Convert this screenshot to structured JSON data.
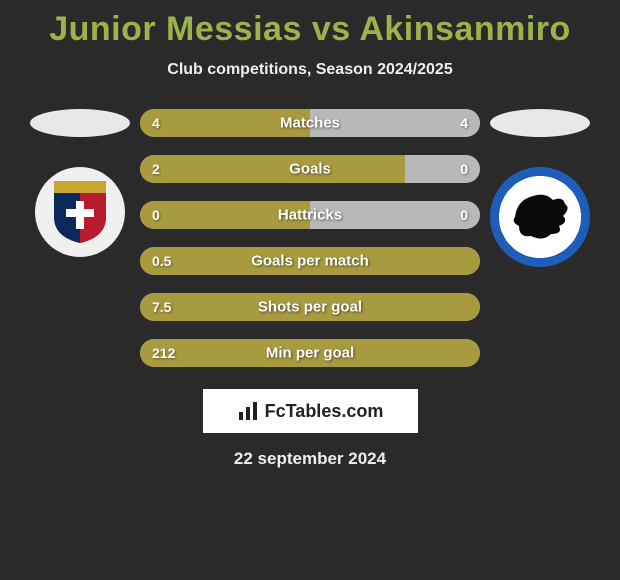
{
  "title_color": "#9bb34a",
  "player_left": "Junior Messias",
  "player_right": "Akinsanmiro",
  "vs_text": "vs",
  "subtitle": "Club competitions, Season 2024/2025",
  "left_fill_color": "#a89a3e",
  "right_fill_color": "#b8b8b8",
  "bar_bg_color": "#888888",
  "stats": [
    {
      "label": "Matches",
      "left_val": "4",
      "right_val": "4",
      "left_pct": 50,
      "right_pct": 50
    },
    {
      "label": "Goals",
      "left_val": "2",
      "right_val": "0",
      "left_pct": 78,
      "right_pct": 22
    },
    {
      "label": "Hattricks",
      "left_val": "0",
      "right_val": "0",
      "left_pct": 50,
      "right_pct": 50
    },
    {
      "label": "Goals per match",
      "left_val": "0.5",
      "right_val": "",
      "left_pct": 100,
      "right_pct": 0
    },
    {
      "label": "Shots per goal",
      "left_val": "7.5",
      "right_val": "",
      "left_pct": 100,
      "right_pct": 0
    },
    {
      "label": "Min per goal",
      "left_val": "212",
      "right_val": "",
      "left_pct": 100,
      "right_pct": 0
    }
  ],
  "branding_text": "FcTables.com",
  "date_text": "22 september 2024",
  "crest_left": {
    "top_color": "#c9a832",
    "mid_color": "#0a2a5c",
    "bottom_color": "#b81c2c"
  },
  "crest_right": {
    "ring_color": "#1e5db8",
    "silhouette_color": "#0a0a0a"
  }
}
